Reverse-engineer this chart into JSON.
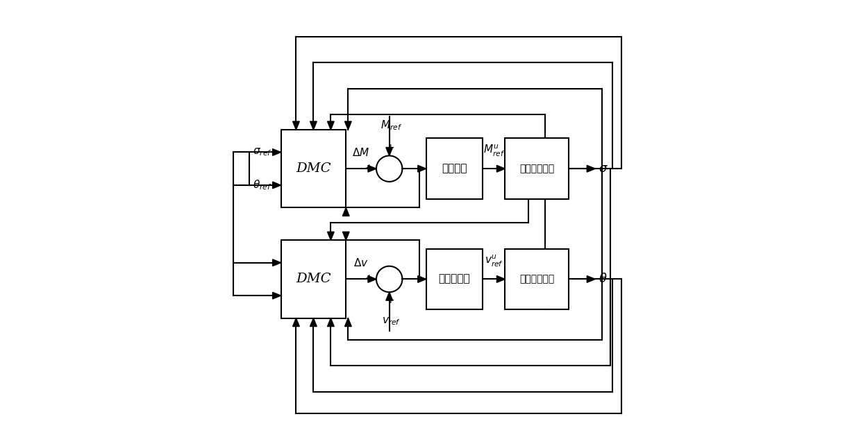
{
  "bg_color": "#ffffff",
  "line_color": "#000000",
  "fig_width": 12.4,
  "fig_height": 6.3,
  "labels": {
    "dmc": "DMC",
    "motor1": "活套电机",
    "motor2": "主传动电机",
    "model1": "带锂张力模型",
    "model2": "活套高度模型",
    "sigma_ref": "$\\sigma_{ref}$",
    "theta_ref": "$\\theta_{ref}$",
    "sigma_out": "$\\sigma$",
    "theta_out": "$\\theta$",
    "delta_M": "$\\Delta M$",
    "delta_v": "$\\Delta v$",
    "M_ref": "$M_{ref}$",
    "v_ref": "$v_{ref}$",
    "Mu_ref": "$M^u_{ref}$",
    "vu_ref": "$v^u_{ref}$",
    "plus": "+"
  }
}
